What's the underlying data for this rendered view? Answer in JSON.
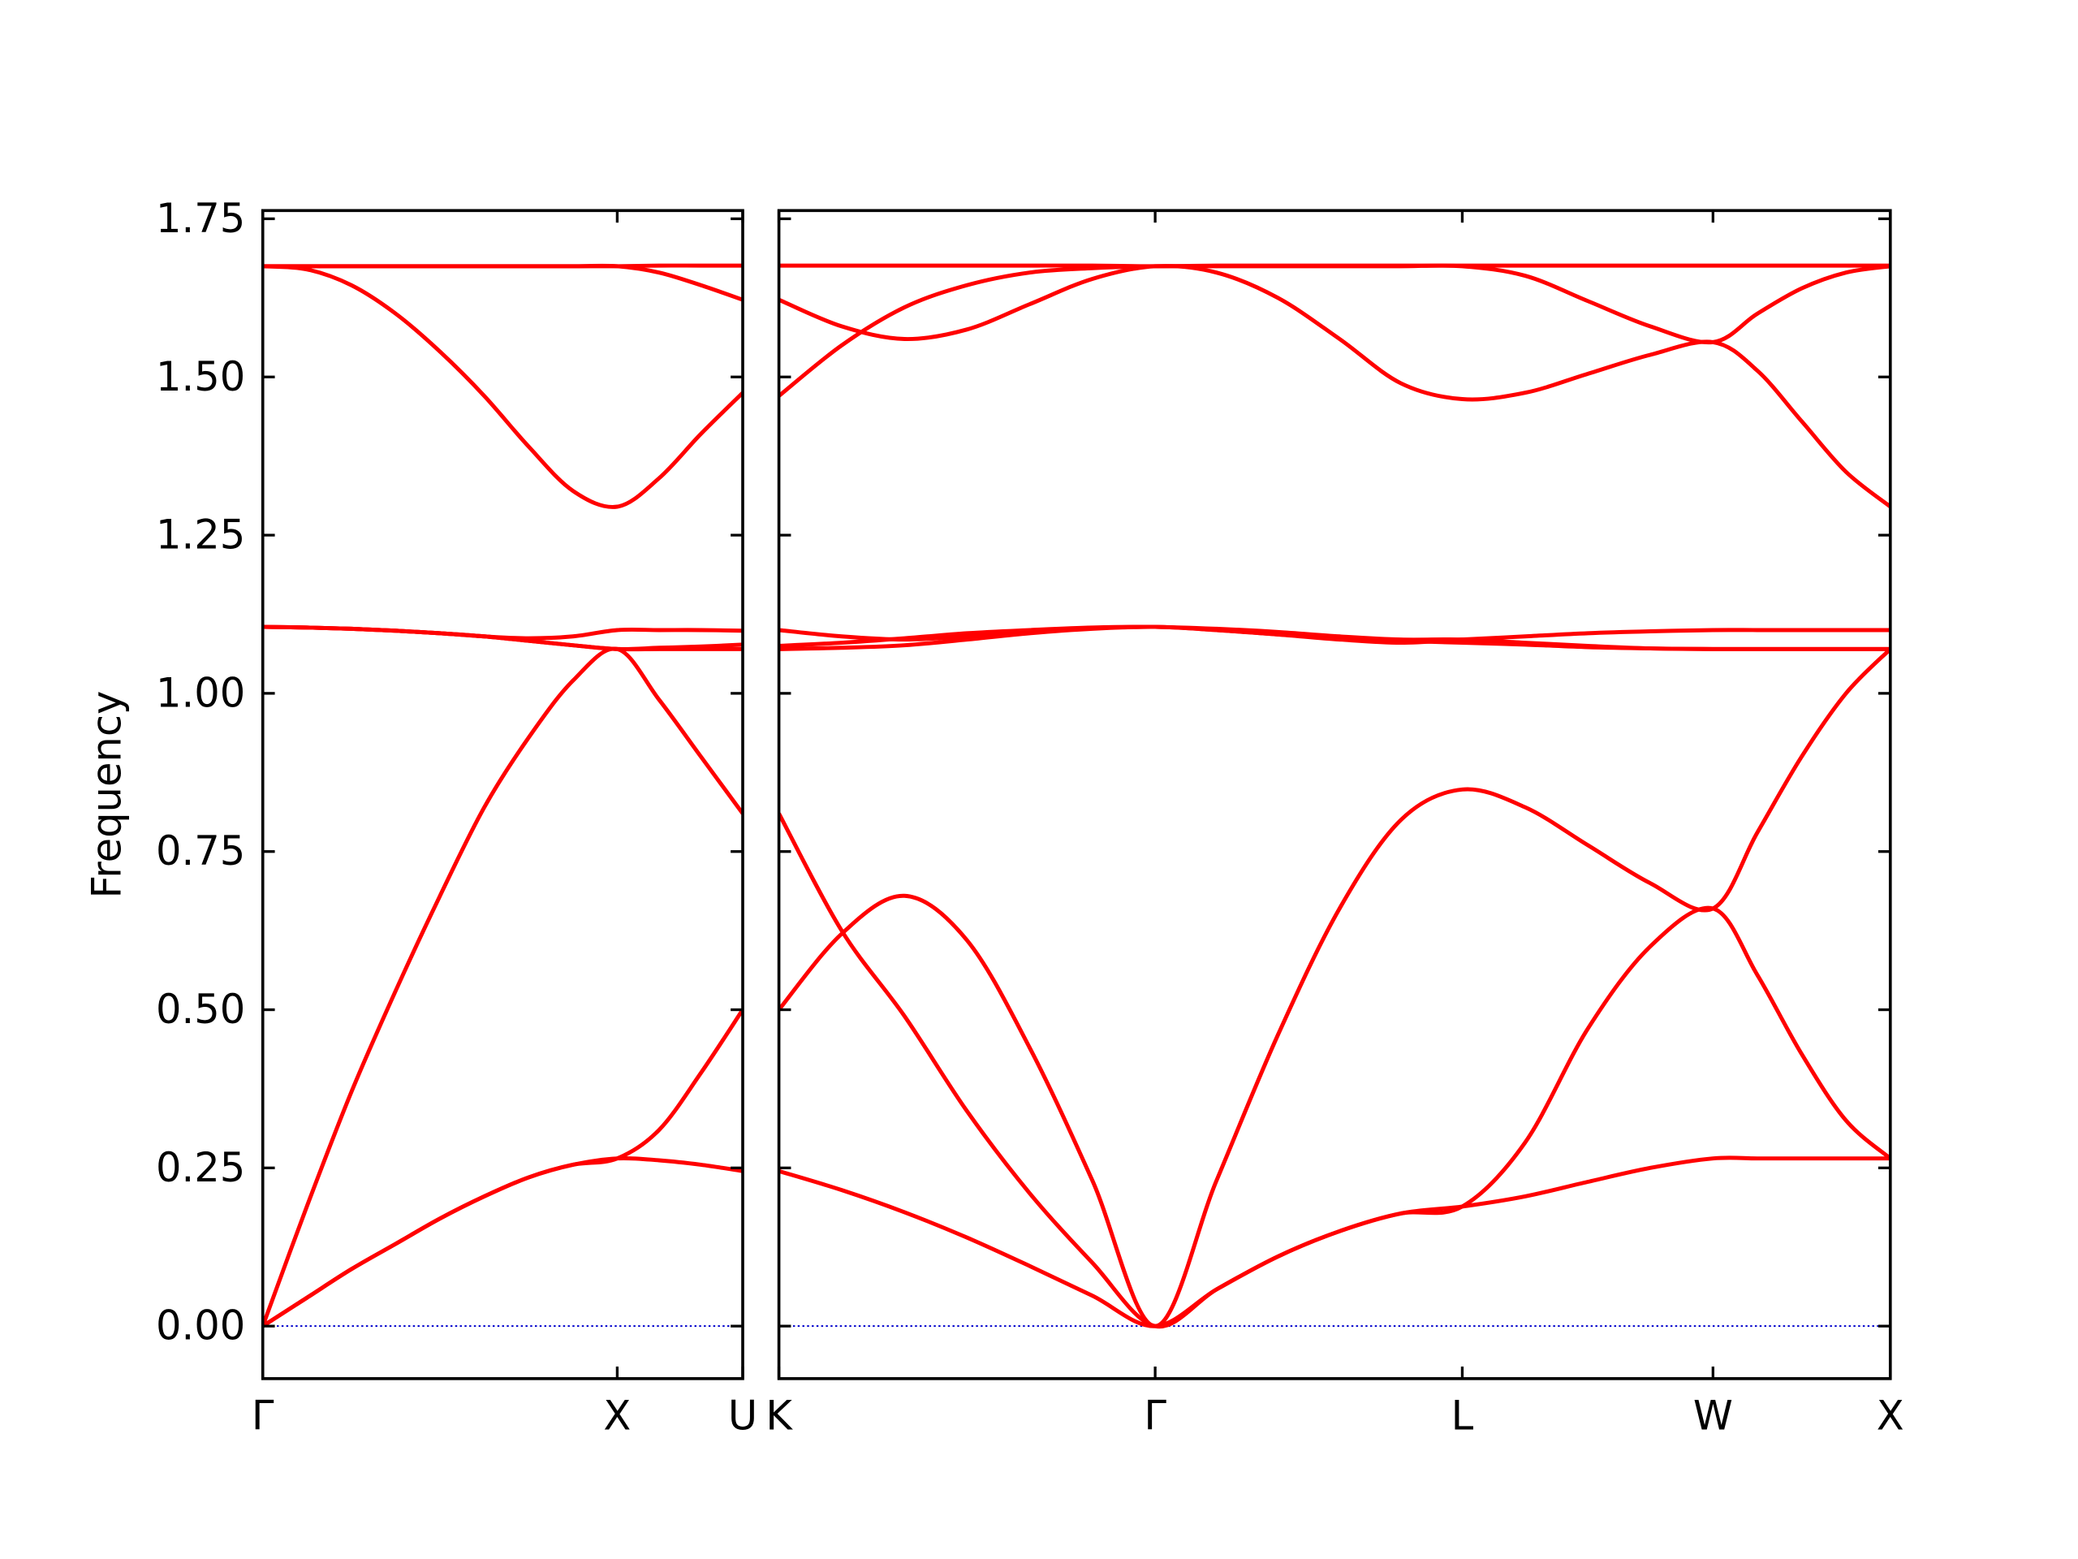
{
  "chart_data": [
    {
      "type": "line",
      "ylabel": "Frequency",
      "color": "#ff0000",
      "x": [
        0,
        0.125,
        0.25,
        0.375,
        0.5,
        0.625,
        0.75,
        0.875,
        1,
        1.118,
        1.236,
        1.354
      ],
      "xlim": [
        0,
        1.354
      ],
      "xticks": [
        {
          "value": 0,
          "label": "Γ"
        },
        {
          "value": 1,
          "label": "X"
        },
        {
          "value": 1.354,
          "label": "U"
        }
      ],
      "ylim": [
        -0.083,
        1.763
      ],
      "yticks": [
        {
          "value": 0,
          "label": "0.00"
        },
        {
          "value": 0.25,
          "label": "0.25"
        },
        {
          "value": 0.5,
          "label": "0.50"
        },
        {
          "value": 0.75,
          "label": "0.75"
        },
        {
          "value": 1,
          "label": "1.00"
        },
        {
          "value": 1.25,
          "label": "1.25"
        },
        {
          "value": 1.5,
          "label": "1.50"
        },
        {
          "value": 1.75,
          "label": "1.75"
        }
      ],
      "zero_line": {
        "value": 0,
        "color": "#0000cc"
      },
      "series": [
        {
          "values": [
            0,
            0.045,
            0.09,
            0.13,
            0.17,
            0.205,
            0.235,
            0.255,
            0.265,
            0.262,
            0.255,
            0.245
          ]
        },
        {
          "values": [
            0,
            0.045,
            0.09,
            0.13,
            0.17,
            0.205,
            0.235,
            0.255,
            0.265,
            0.31,
            0.4,
            0.5
          ]
        },
        {
          "values": [
            0,
            0.19,
            0.37,
            0.53,
            0.68,
            0.82,
            0.93,
            1.02,
            1.07,
            0.99,
            0.9,
            0.81
          ]
        },
        {
          "values": [
            1.105,
            1.104,
            1.102,
            1.099,
            1.095,
            1.09,
            1.083,
            1.076,
            1.07,
            1.07,
            1.07,
            1.07
          ]
        },
        {
          "values": [
            1.105,
            1.104,
            1.102,
            1.099,
            1.095,
            1.09,
            1.083,
            1.076,
            1.07,
            1.072,
            1.074,
            1.077
          ]
        },
        {
          "values": [
            1.105,
            1.104,
            1.102,
            1.099,
            1.095,
            1.09,
            1.087,
            1.09,
            1.1,
            1.1,
            1.1,
            1.099
          ]
        },
        {
          "values": [
            1.675,
            1.675,
            1.675,
            1.675,
            1.675,
            1.675,
            1.675,
            1.675,
            1.675,
            1.665,
            1.645,
            1.622
          ]
        },
        {
          "values": [
            1.675,
            1.675,
            1.675,
            1.675,
            1.675,
            1.675,
            1.675,
            1.675,
            1.675,
            1.676,
            1.676,
            1.676
          ]
        },
        {
          "values": [
            1.675,
            1.67,
            1.645,
            1.6,
            1.54,
            1.47,
            1.39,
            1.32,
            1.295,
            1.34,
            1.41,
            1.475
          ]
        }
      ]
    },
    {
      "type": "line",
      "color": "#ff0000",
      "ytick_labels": false,
      "x": [
        0,
        0.177,
        0.354,
        0.53,
        0.707,
        0.884,
        1.061,
        1.234,
        1.407,
        1.581,
        1.754,
        1.927,
        2.104,
        2.281,
        2.457,
        2.634,
        2.759,
        2.884,
        3.009,
        3.134
      ],
      "xlim": [
        0,
        3.134
      ],
      "xticks": [
        {
          "value": 0,
          "label": "K"
        },
        {
          "value": 1.061,
          "label": "Γ"
        },
        {
          "value": 1.927,
          "label": "L"
        },
        {
          "value": 2.634,
          "label": "W"
        },
        {
          "value": 3.134,
          "label": "X"
        }
      ],
      "ylim": [
        -0.083,
        1.763
      ],
      "yticks": [
        0,
        0.25,
        0.5,
        0.75,
        1,
        1.25,
        1.5,
        1.75
      ],
      "zero_line": {
        "value": 0,
        "color": "#0000cc"
      },
      "series": [
        {
          "values": [
            0.245,
            0.215,
            0.18,
            0.14,
            0.095,
            0.048,
            0,
            0.058,
            0.11,
            0.15,
            0.178,
            0.189,
            0.205,
            0.228,
            0.25,
            0.265,
            0.265,
            0.265,
            0.265,
            0.265
          ]
        },
        {
          "values": [
            0.81,
            0.625,
            0.49,
            0.34,
            0.21,
            0.1,
            0,
            0.058,
            0.11,
            0.15,
            0.178,
            0.189,
            0.29,
            0.47,
            0.6,
            0.66,
            0.555,
            0.43,
            0.325,
            0.265
          ]
        },
        {
          "values": [
            0.5,
            0.62,
            0.68,
            0.61,
            0.44,
            0.23,
            0,
            0.23,
            0.46,
            0.66,
            0.8,
            0.848,
            0.82,
            0.76,
            0.7,
            0.66,
            0.78,
            0.9,
            1,
            1.07
          ]
        },
        {
          "values": [
            1.07,
            1.072,
            1.076,
            1.085,
            1.095,
            1.102,
            1.105,
            1.1,
            1.093,
            1.087,
            1.083,
            1.08,
            1.077,
            1.073,
            1.071,
            1.07,
            1.07,
            1.07,
            1.07,
            1.07
          ]
        },
        {
          "values": [
            1.075,
            1.08,
            1.087,
            1.095,
            1.1,
            1.104,
            1.105,
            1.102,
            1.097,
            1.09,
            1.085,
            1.085,
            1.08,
            1.075,
            1.071,
            1.07,
            1.07,
            1.07,
            1.07,
            1.07
          ]
        },
        {
          "values": [
            1.1,
            1.09,
            1.085,
            1.09,
            1.098,
            1.103,
            1.105,
            1.1,
            1.093,
            1.085,
            1.08,
            1.085,
            1.09,
            1.095,
            1.098,
            1.1,
            1.1,
            1.1,
            1.1,
            1.1
          ]
        },
        {
          "values": [
            1.622,
            1.58,
            1.56,
            1.575,
            1.615,
            1.655,
            1.675,
            1.665,
            1.625,
            1.56,
            1.49,
            1.465,
            1.475,
            1.505,
            1.535,
            1.555,
            1.51,
            1.43,
            1.35,
            1.295
          ]
        },
        {
          "values": [
            1.47,
            1.55,
            1.61,
            1.645,
            1.665,
            1.672,
            1.675,
            1.675,
            1.675,
            1.675,
            1.675,
            1.675,
            1.66,
            1.62,
            1.58,
            1.555,
            1.6,
            1.64,
            1.665,
            1.675
          ]
        },
        {
          "values": [
            1.676,
            1.676,
            1.676,
            1.676,
            1.676,
            1.676,
            1.675,
            1.676,
            1.676,
            1.676,
            1.676,
            1.676,
            1.676,
            1.676,
            1.676,
            1.676,
            1.676,
            1.676,
            1.676,
            1.676
          ]
        }
      ]
    }
  ]
}
